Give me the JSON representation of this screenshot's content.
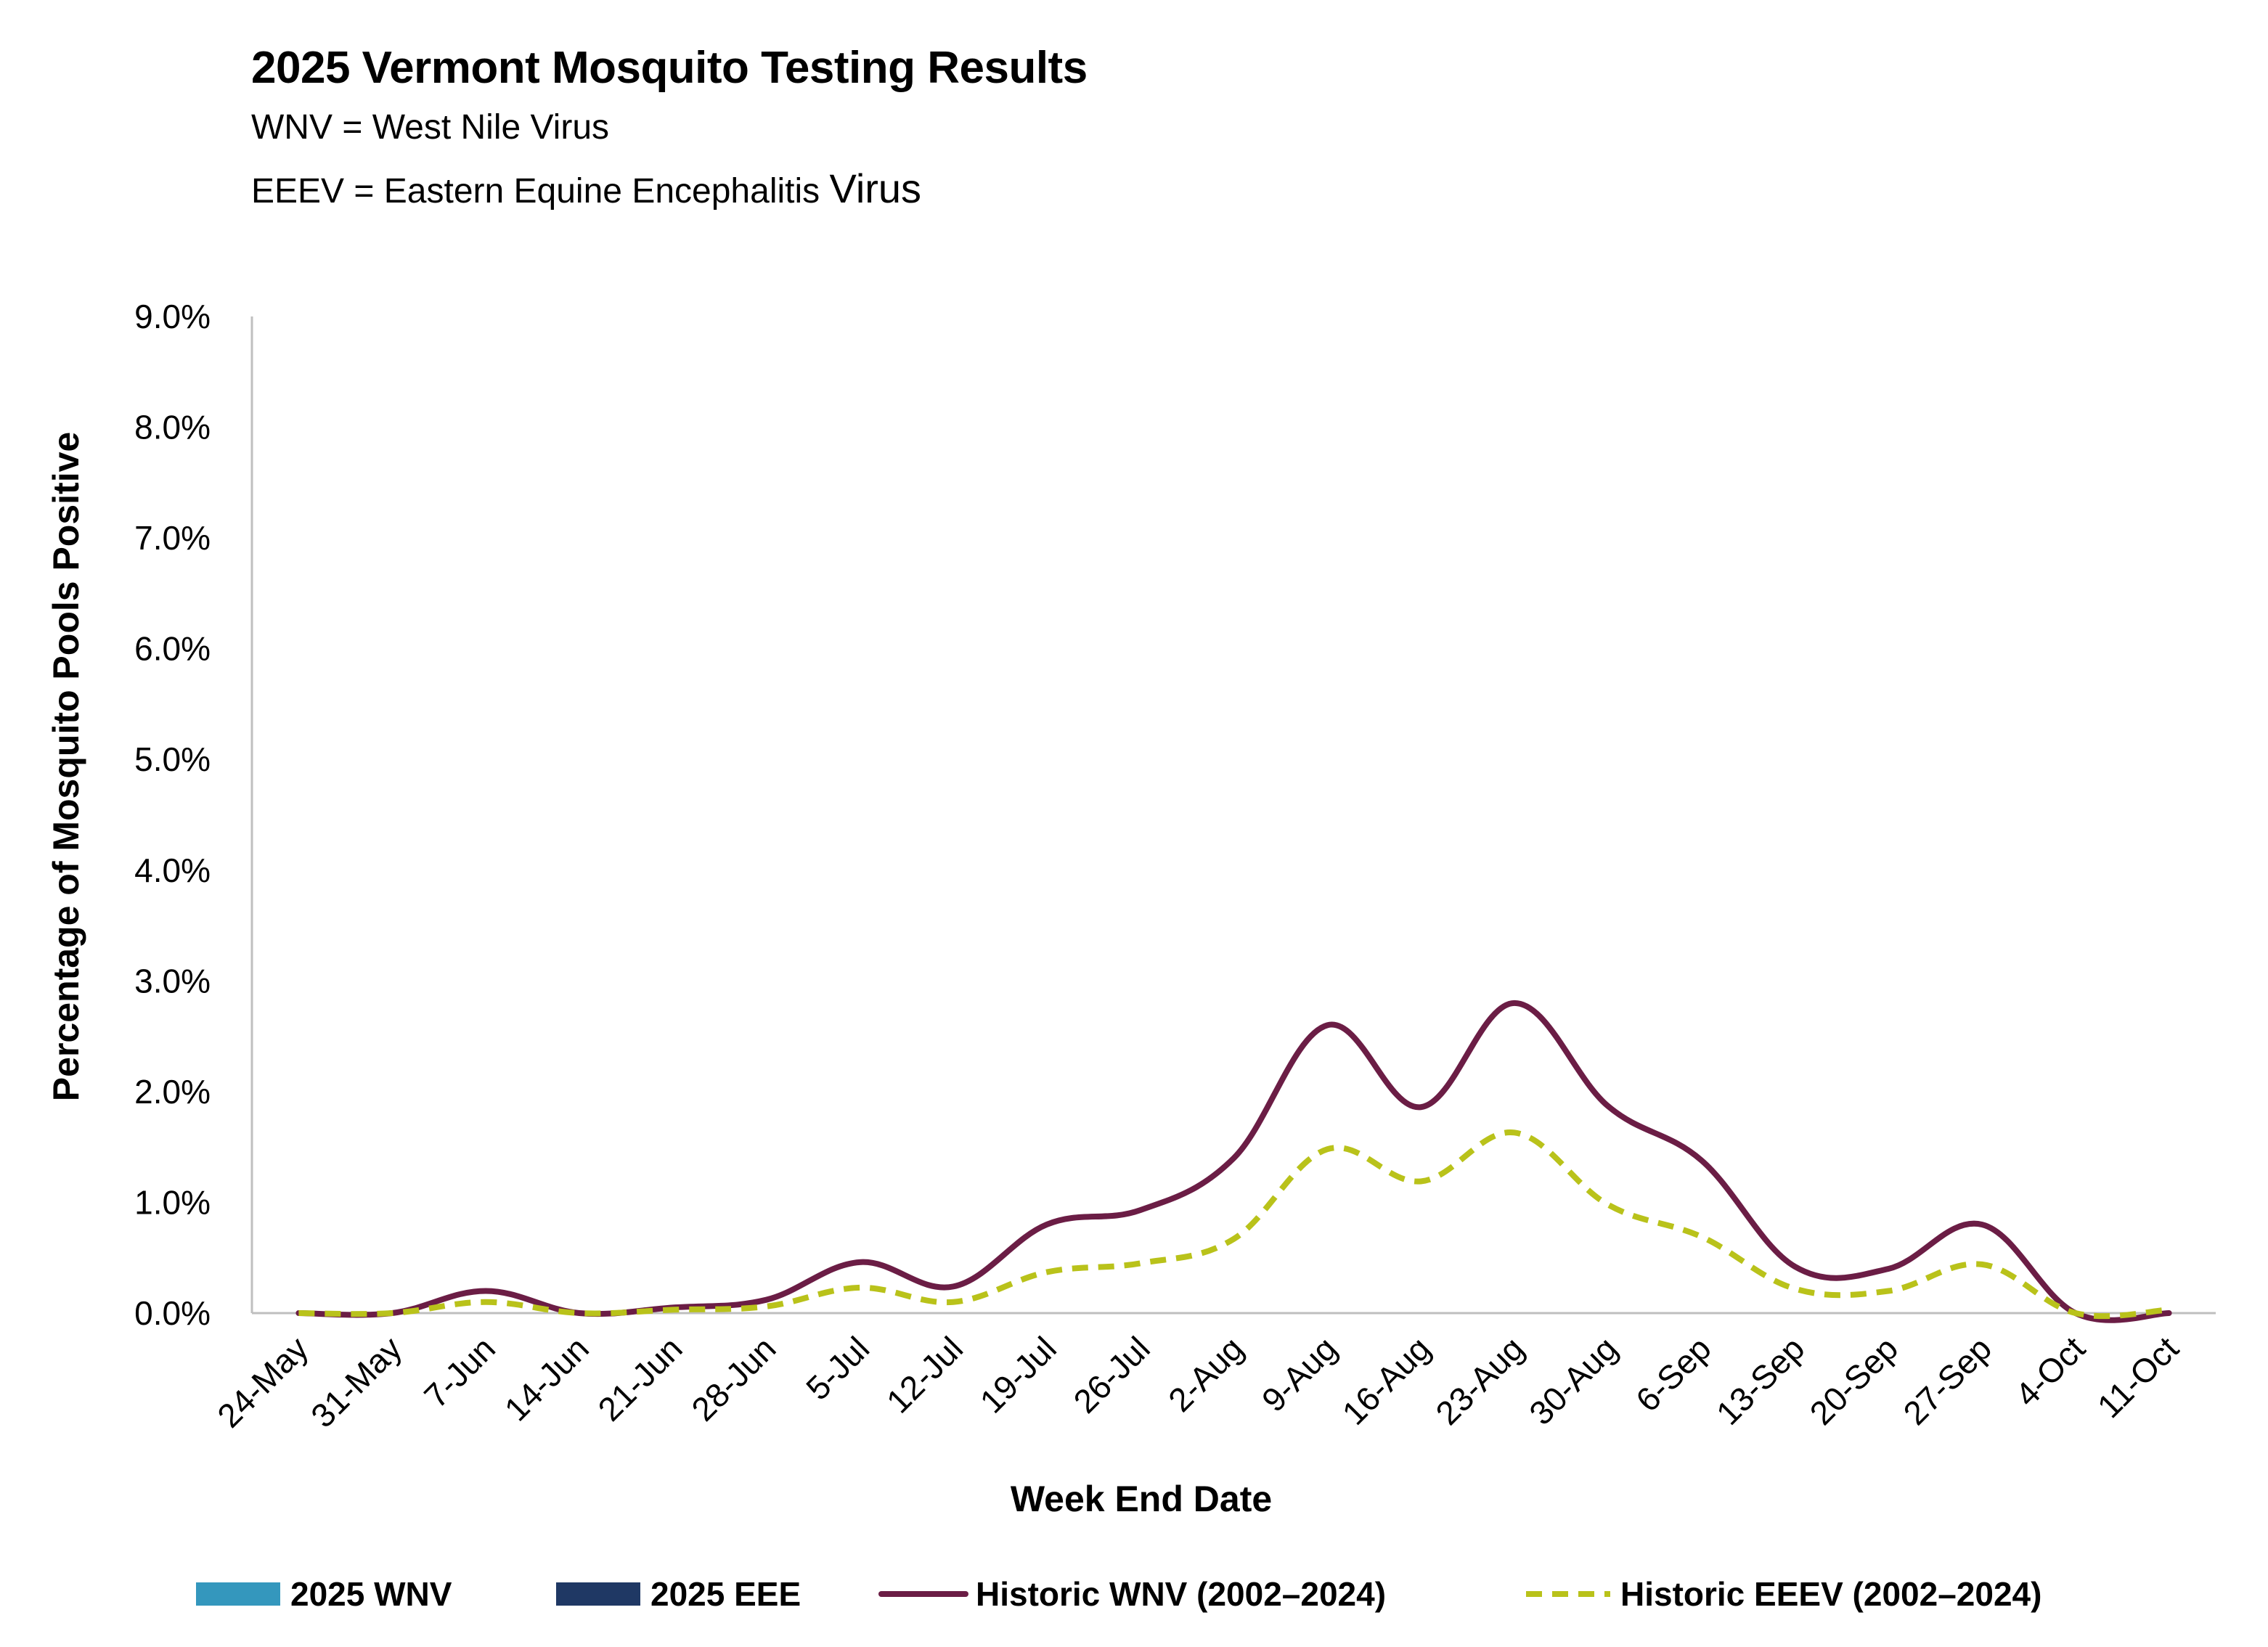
{
  "header": {
    "title": "2025 Vermont Mosquito Testing Results",
    "line1": "WNV = West Nile Virus",
    "line2_prefix": "EEEV = Eastern Equine Encephalitis ",
    "line2_suffix": "Virus"
  },
  "colors": {
    "wnv2025": "#3497bd",
    "eee2025": "#1f3864",
    "historic_wnv": "#6b1d45",
    "historic_eeev": "#b9c21a"
  },
  "chart_data": {
    "type": "line",
    "xlabel": "Week End Date",
    "ylabel": "Percentage of Mosquito Pools Positive",
    "ylim": [
      0,
      9
    ],
    "y_tick_labels": [
      "0.0%",
      "1.0%",
      "2.0%",
      "3.0%",
      "4.0%",
      "5.0%",
      "6.0%",
      "7.0%",
      "8.0%",
      "9.0%"
    ],
    "categories": [
      "24-May",
      "31-May",
      "7-Jun",
      "14-Jun",
      "21-Jun",
      "28-Jun",
      "5-Jul",
      "12-Jul",
      "19-Jul",
      "26-Jul",
      "2-Aug",
      "9-Aug",
      "16-Aug",
      "23-Aug",
      "30-Aug",
      "6-Sep",
      "13-Sep",
      "20-Sep",
      "27-Sep",
      "4-Oct",
      "11-Oct"
    ],
    "series": [
      {
        "name": "2025 WNV",
        "kind": "bar",
        "values": [
          0,
          0,
          0,
          0,
          0,
          0,
          0,
          0,
          0,
          0,
          0,
          0,
          0,
          0,
          0,
          0,
          0,
          0,
          0,
          0,
          0
        ]
      },
      {
        "name": "2025 EEE",
        "kind": "bar",
        "values": [
          0,
          0,
          0,
          0,
          0,
          0,
          0,
          0,
          0,
          0,
          0,
          0,
          0,
          0,
          0,
          0,
          0,
          0,
          0,
          0,
          0
        ]
      },
      {
        "name": "Historic WNV (2002–2024)",
        "kind": "line",
        "style": "solid",
        "values": [
          0.0,
          0.0,
          0.2,
          0.0,
          0.05,
          0.12,
          0.46,
          0.24,
          0.8,
          0.93,
          1.4,
          2.6,
          1.86,
          2.8,
          1.87,
          1.38,
          0.42,
          0.4,
          0.8,
          0.0,
          0.0
        ]
      },
      {
        "name": "Historic EEEV (2002–2024)",
        "kind": "line",
        "style": "dashed",
        "values": [
          0.0,
          0.0,
          0.1,
          0.0,
          0.03,
          0.06,
          0.23,
          0.1,
          0.37,
          0.45,
          0.67,
          1.48,
          1.19,
          1.63,
          0.98,
          0.69,
          0.22,
          0.2,
          0.44,
          0.0,
          0.03
        ]
      }
    ],
    "legend": [
      "2025 WNV",
      "2025 EEE",
      "Historic WNV (2002–2024)",
      "Historic EEEV (2002–2024)"
    ],
    "legend_position": "bottom",
    "grid": false
  }
}
